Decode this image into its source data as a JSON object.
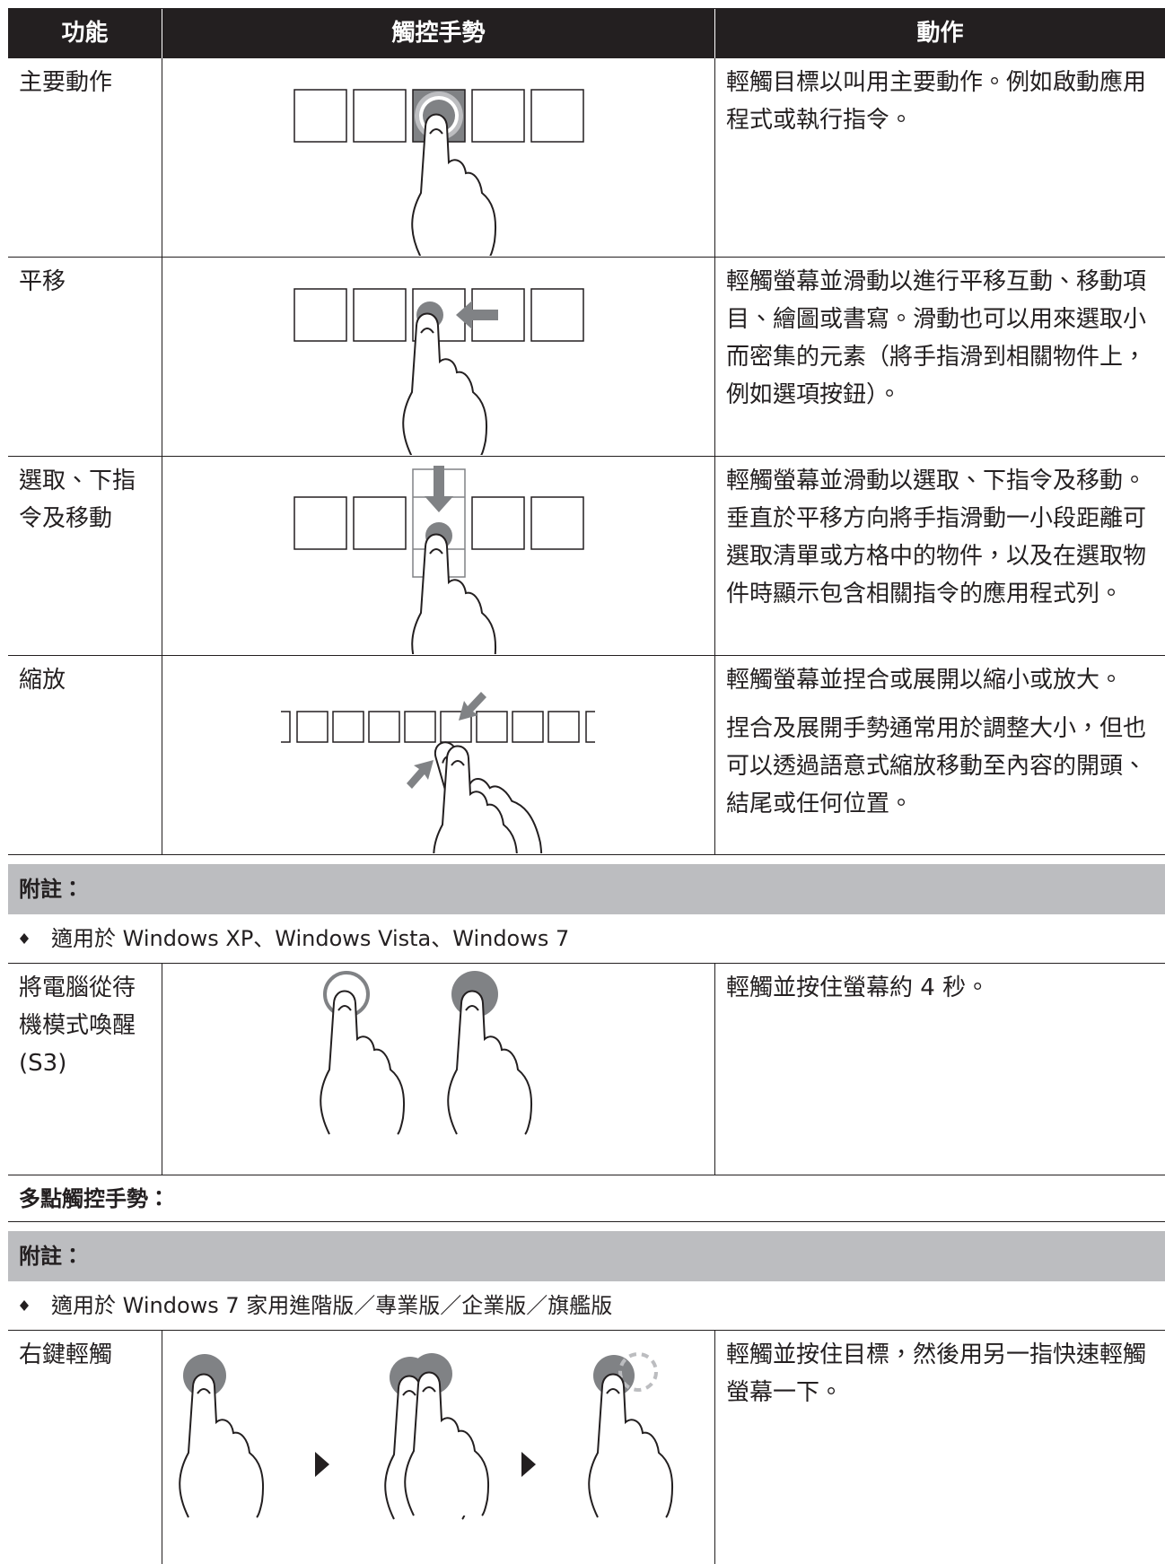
{
  "table": {
    "header": [
      "功能",
      "觸控手勢",
      "動作"
    ],
    "rows": [
      {
        "function": "主要動作",
        "action": [
          "輕觸目標以叫用主要動作。例如啟動應用程式或執行指令。"
        ]
      },
      {
        "function": "平移",
        "action": [
          "輕觸螢幕並滑動以進行平移互動、移動項目、繪圖或書寫。滑動也可以用來選取小而密集的元素（將手指滑到相關物件上，例如選項按鈕）。"
        ]
      },
      {
        "function": "選取、下指令及移動",
        "action": [
          "輕觸螢幕並滑動以選取、下指令及移動。垂直於平移方向將手指滑動一小段距離可選取清單或方格中的物件，以及在選取物件時顯示包含相關指令的應用程式列。"
        ]
      },
      {
        "function": "縮放",
        "action": [
          "輕觸螢幕並捏合或展開以縮小或放大。",
          "捏合及展開手勢通常用於調整大小，但也可以透過語意式縮放移動至內容的開頭、結尾或任何位置。"
        ]
      }
    ]
  },
  "note1": {
    "title": "附註：",
    "item": "適用於 Windows XP、Windows Vista、Windows 7"
  },
  "wake_row": {
    "function": "將電腦從待機模式喚醒(S3)",
    "action": [
      "輕觸並按住螢幕約 4 秒。"
    ]
  },
  "section": "多點觸控手勢：",
  "note2": {
    "title": "附註：",
    "item": "適用於 Windows 7 家用進階版／專業版／企業版／旗艦版"
  },
  "right_click_row": {
    "function": "右鍵輕觸",
    "action": [
      "輕觸並按住目標，然後用另一指快速輕觸螢幕一下。"
    ]
  }
}
